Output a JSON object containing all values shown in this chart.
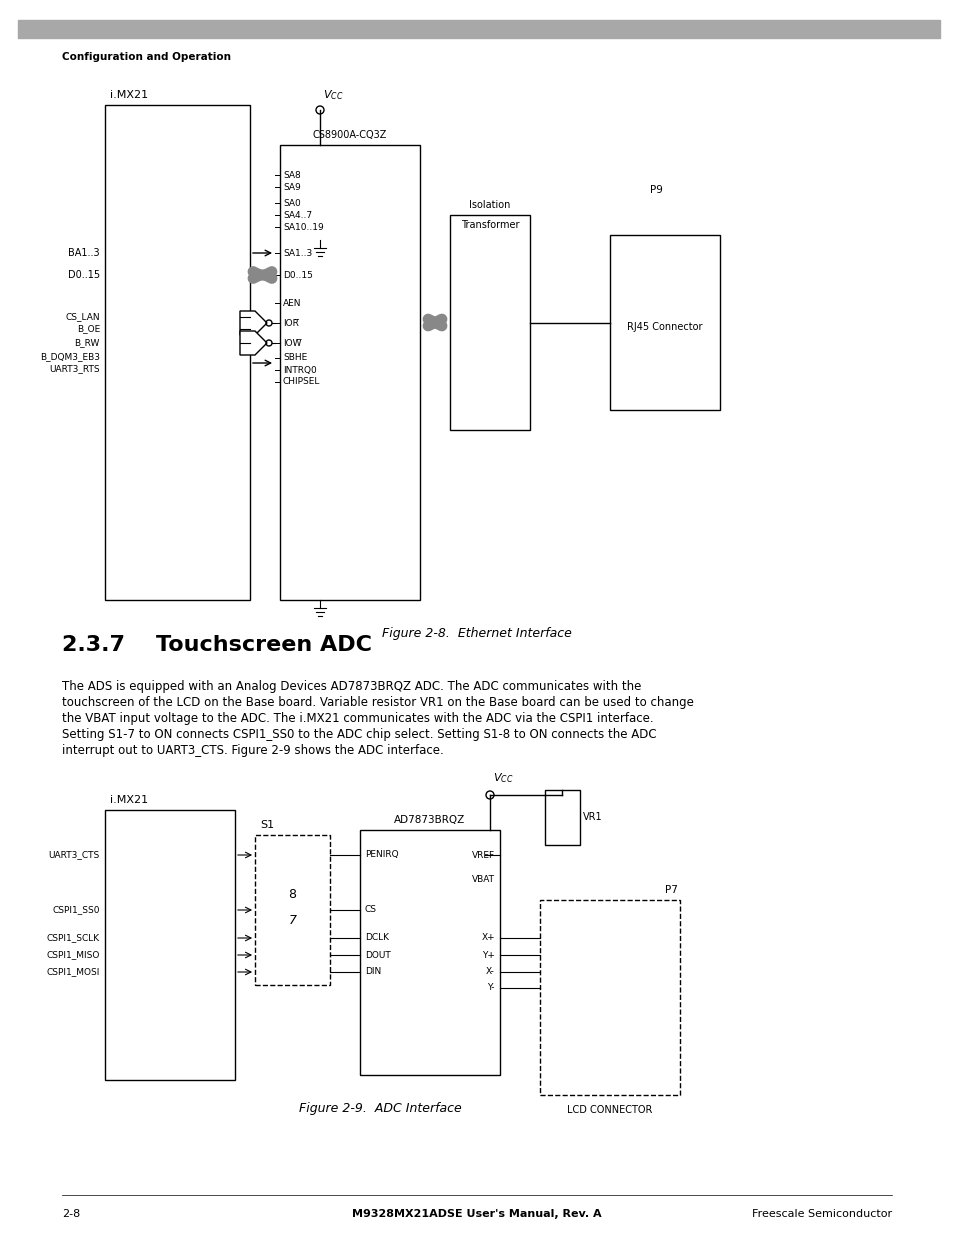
{
  "page_title": "Configuration and Operation",
  "section_title": "2.3.7    Touchscreen ADC",
  "body_text": "The ADS is equipped with an Analog Devices AD7873BRQZ ADC. The ADC communicates with the\ntouchscreen of the LCD on the Base board. Variable resistor VR1 on the Base board can be used to change\nthe VBAT input voltage to the ADC. The i.MX21 communicates with the ADC via the CSPI1 interface.\nSetting S1-7 to ON connects CSPI1_SS0 to the ADC chip select. Setting S1-8 to ON connects the ADC\ninterrupt out to UART3_CTS. Figure 2-9 shows the ADC interface.",
  "fig1_caption": "Figure 2-8.  Ethernet Interface",
  "fig2_caption": "Figure 2-9.  ADC Interface",
  "footer_left": "2-8",
  "footer_center": "M9328MX21ADSE User's Manual, Rev. A",
  "footer_right": "Freescale Semiconductor",
  "bg_color": "#ffffff",
  "header_bar_color": "#aaaaaa",
  "text_color": "#000000"
}
